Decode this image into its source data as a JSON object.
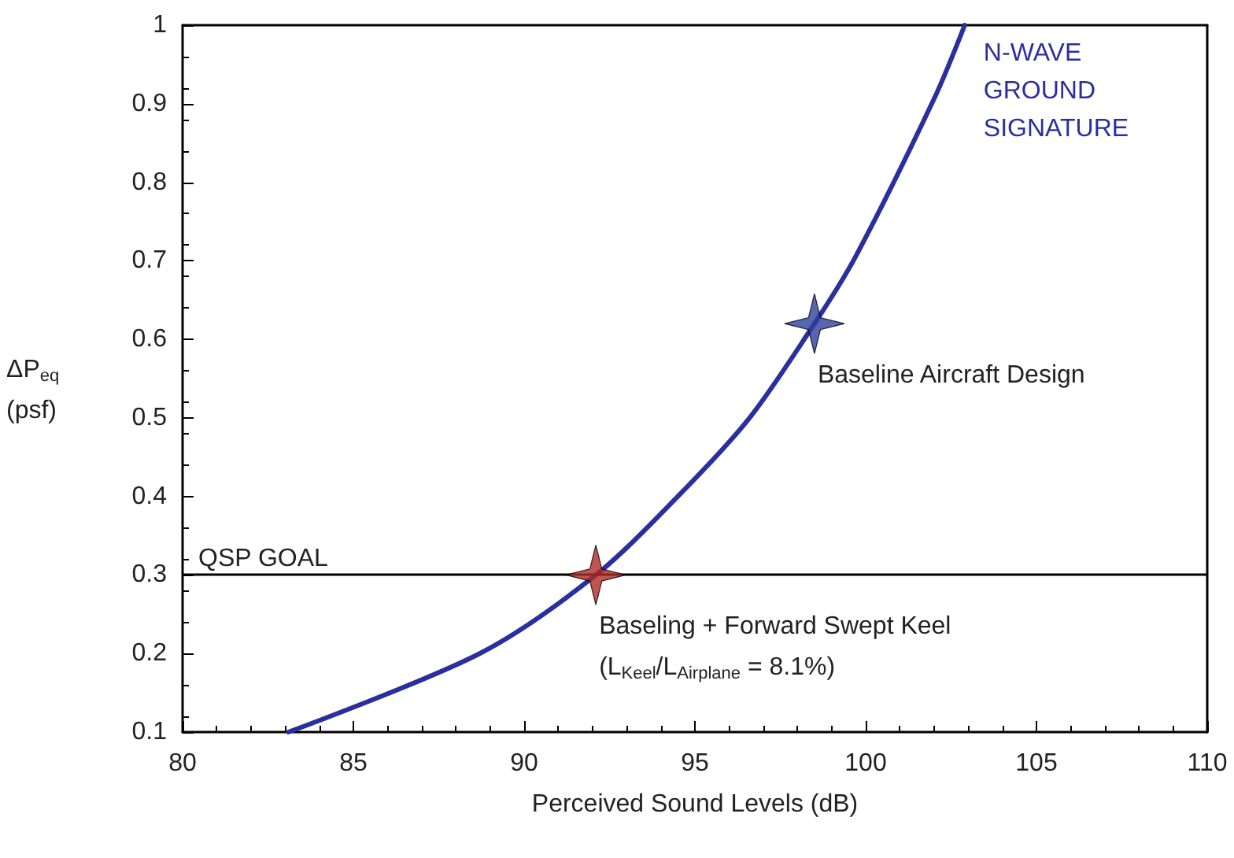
{
  "chart_data": {
    "type": "line",
    "xlabel": "Perceived Sound Levels (dB)",
    "ylabel": "ΔP$_{eq}$\n(psf)",
    "series": [
      {
        "name": "N-WAVE\nGROUND\nSIGNATURE",
        "color": "#2b2f9e",
        "x": [
          83.1,
          88.7,
          92.1,
          94.5,
          96.6,
          98.5,
          99.7,
          102.0,
          102.9
        ],
        "values": [
          0.1,
          0.2,
          0.3,
          0.4,
          0.5,
          0.62,
          0.705,
          0.906,
          1.0
        ]
      },
      {
        "type": "scatter",
        "marker": "star",
        "color": "#b22a25",
        "x": [
          92.1
        ],
        "values": [
          0.3
        ]
      },
      {
        "type": "scatter",
        "marker": "star",
        "color": "#2e3f9e",
        "x": [
          98.5
        ],
        "values": [
          0.62
        ]
      }
    ],
    "annotations": [
      {
        "text": "Baseline Aircraft Design",
        "x": 98.5,
        "y": 0.62
      },
      {
        "text": "Baseling + Forward Swept Keel\n(L$_{Keel}$/L$_{Airplane}$ = 8.1%)",
        "x": 92.1,
        "y": 0.3
      }
    ],
    "ref_lines": [
      {
        "axis": "y",
        "value": 0.3,
        "label": "QSP GOAL",
        "color": "#000000"
      }
    ],
    "xlim": [
      80,
      110
    ],
    "xticks": [
      80,
      85,
      90,
      95,
      100,
      105,
      110
    ],
    "ylim": [
      0.1,
      1
    ],
    "yticks": [
      0.1,
      0.2,
      0.3,
      0.4,
      0.5,
      0.6,
      0.7,
      0.8,
      0.9,
      {
        "value": 1,
        "label": "1"
      }
    ],
    "grid": false,
    "legend": false,
    "marker": "none",
    "line_style": "solid"
  }
}
